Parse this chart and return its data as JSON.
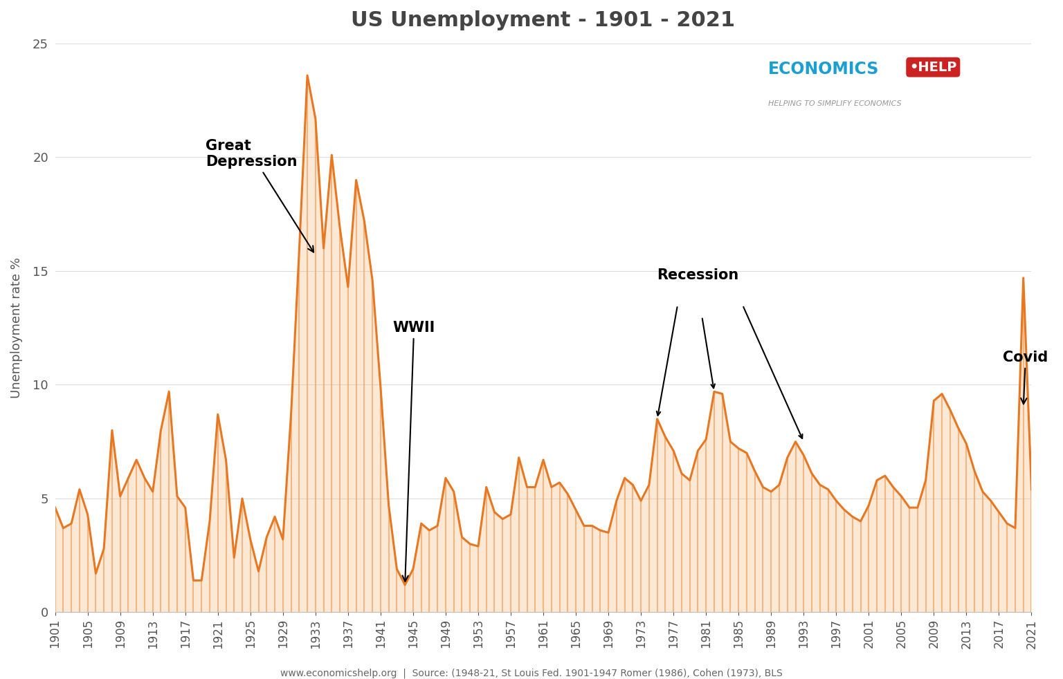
{
  "title": "US Unemployment - 1901 - 2021",
  "ylabel": "Unemployment rate %",
  "footer": "www.economicshelp.org  |  Source: (1948-21, St Louis Fed. 1901-1947 Romer (1986), Cohen (1973), BLS",
  "line_color": "#E87722",
  "fill_color": "#F5A85A",
  "vline_color": "#F0A060",
  "background_color": "#FFFFFF",
  "ylim": [
    0,
    25
  ],
  "yticks": [
    0,
    5,
    10,
    15,
    20,
    25
  ],
  "years": [
    1901,
    1902,
    1903,
    1904,
    1905,
    1906,
    1907,
    1908,
    1909,
    1910,
    1911,
    1912,
    1913,
    1914,
    1915,
    1916,
    1917,
    1918,
    1919,
    1920,
    1921,
    1922,
    1923,
    1924,
    1925,
    1926,
    1927,
    1928,
    1929,
    1930,
    1931,
    1932,
    1933,
    1934,
    1935,
    1936,
    1937,
    1938,
    1939,
    1940,
    1941,
    1942,
    1943,
    1944,
    1945,
    1946,
    1947,
    1948,
    1949,
    1950,
    1951,
    1952,
    1953,
    1954,
    1955,
    1956,
    1957,
    1958,
    1959,
    1960,
    1961,
    1962,
    1963,
    1964,
    1965,
    1966,
    1967,
    1968,
    1969,
    1970,
    1971,
    1972,
    1973,
    1974,
    1975,
    1976,
    1977,
    1978,
    1979,
    1980,
    1981,
    1982,
    1983,
    1984,
    1985,
    1986,
    1987,
    1988,
    1989,
    1990,
    1991,
    1992,
    1993,
    1994,
    1995,
    1996,
    1997,
    1998,
    1999,
    2000,
    2001,
    2002,
    2003,
    2004,
    2005,
    2006,
    2007,
    2008,
    2009,
    2010,
    2011,
    2012,
    2013,
    2014,
    2015,
    2016,
    2017,
    2018,
    2019,
    2020,
    2021
  ],
  "values": [
    4.6,
    3.7,
    3.9,
    5.4,
    4.3,
    1.7,
    2.8,
    8.0,
    5.1,
    5.9,
    6.7,
    5.9,
    5.3,
    8.0,
    9.7,
    5.1,
    4.6,
    1.4,
    1.4,
    4.0,
    8.7,
    6.7,
    2.4,
    5.0,
    3.2,
    1.8,
    3.3,
    4.2,
    3.2,
    8.7,
    15.9,
    23.6,
    21.7,
    16.0,
    20.1,
    16.9,
    14.3,
    19.0,
    17.2,
    14.6,
    9.9,
    4.7,
    1.9,
    1.2,
    1.9,
    3.9,
    3.6,
    3.8,
    5.9,
    5.3,
    3.3,
    3.0,
    2.9,
    5.5,
    4.4,
    4.1,
    4.3,
    6.8,
    5.5,
    5.5,
    6.7,
    5.5,
    5.7,
    5.2,
    4.5,
    3.8,
    3.8,
    3.6,
    3.5,
    4.9,
    5.9,
    5.6,
    4.9,
    5.6,
    8.5,
    7.7,
    7.1,
    6.1,
    5.8,
    7.1,
    7.6,
    9.7,
    9.6,
    7.5,
    7.2,
    7.0,
    6.2,
    5.5,
    5.3,
    5.6,
    6.8,
    7.5,
    6.9,
    6.1,
    5.6,
    5.4,
    4.9,
    4.5,
    4.2,
    4.0,
    4.7,
    5.8,
    6.0,
    5.5,
    5.1,
    4.6,
    4.6,
    5.8,
    9.3,
    9.6,
    8.9,
    8.1,
    7.4,
    6.2,
    5.3,
    4.9,
    4.4,
    3.9,
    3.7,
    14.7,
    5.4
  ],
  "logo_economics_color": "#1A9ED4",
  "logo_help_color": "#FFFFFF",
  "logo_help_bg": "#CC2222",
  "logo_subtitle_color": "#999999",
  "title_color": "#444444",
  "grid_color": "#DDDDDD",
  "tick_color": "#555555",
  "annotation_fontsize": 15,
  "annotation_color": "black"
}
